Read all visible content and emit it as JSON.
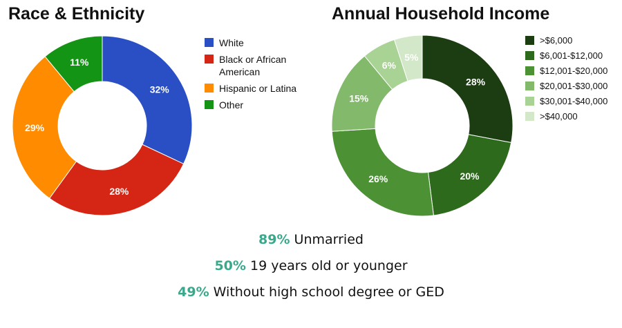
{
  "chart_data": [
    {
      "type": "pie",
      "title": "Race & Ethnicity",
      "categories": [
        "White",
        "Black or African American",
        "Hispanic or Latina",
        "Other"
      ],
      "values": [
        32,
        28,
        29,
        11
      ],
      "labels": [
        "32%",
        "28%",
        "29%",
        "11%"
      ],
      "colors": [
        "#2a4fc4",
        "#d42515",
        "#ff8c00",
        "#149414"
      ],
      "legend_position": "right"
    },
    {
      "type": "pie",
      "title": "Annual Household Income",
      "categories": [
        ">$6,000",
        "$6,001-$12,000",
        "$12,001-$20,000",
        "$20,001-$30,000",
        "$30,001-$40,000",
        ">$40,000"
      ],
      "values": [
        28,
        20,
        26,
        15,
        6,
        5
      ],
      "labels": [
        "28%",
        "20%",
        "26%",
        "15%",
        "6%",
        "5%"
      ],
      "colors": [
        "#1c3d12",
        "#2e6a1c",
        "#4c9235",
        "#82b96a",
        "#a9d394",
        "#d3e7c9"
      ],
      "legend_position": "right"
    }
  ],
  "stats": [
    {
      "value": "89%",
      "label": "Unmarried"
    },
    {
      "value": "50%",
      "label": "19 years old or younger"
    },
    {
      "value": "49%",
      "label": "Without high school degree or GED"
    }
  ]
}
